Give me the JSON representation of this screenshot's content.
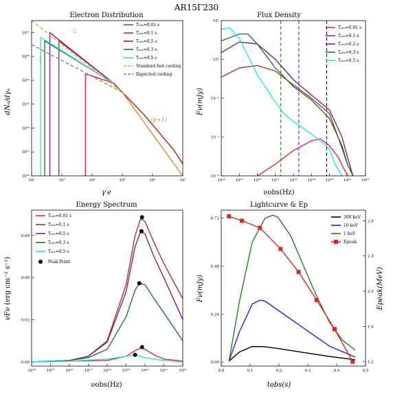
{
  "title": "AR15Γ230",
  "panels": {
    "electron": {
      "title": "Electron Distribution",
      "xlabel": "γ′e",
      "ylabel": "dNₑ/dγₑ",
      "legend": [
        "Tₒ₆ₛ=0.01 s",
        "Tₒ₆ₛ=0.1 s",
        "Tₒ₆ₛ=0.2 s",
        "Tₒ₆ₛ=0.3 s",
        "Tₒ₆ₛ=0.5 s",
        "Standard fast cooling",
        "Expected cooling"
      ],
      "annotations": [
        "-2",
        "-1",
        "−(p+1)"
      ]
    },
    "flux": {
      "title": "Flux Density",
      "xlabel": "νobs(Hz)",
      "ylabel": "Fν(mJy)",
      "legend": [
        "Tₒ₆ₛ=0.01 s",
        "Tₒ₆ₛ=0.1 s",
        "Tₒ₆ₛ=0.2 s",
        "Tₒ₆ₛ=0.3 s",
        "Tₒ₆ₛ=0.5 s"
      ]
    },
    "spectrum": {
      "title": "Energy Spectrum",
      "xlabel": "νobs(Hz)",
      "ylabel": "νFν (erg cm⁻² s⁻¹)",
      "legend": [
        "Tₒ₆ₛ=0.01 s",
        "Tₒ₆ₛ=0.1 s",
        "Tₒ₆ₛ=0.2 s",
        "Tₒ₆ₛ=0.3 s",
        "Tₒ₆ₛ=0.5 s",
        "Peak Point"
      ]
    },
    "lightcurve": {
      "title": "Lightcurve & Ep",
      "xlabel": "tobs(s)",
      "ylabel": "Fν(mJy)",
      "ylabel_right": "Epeak(MeV)",
      "legend": [
        "300 keV",
        "10 keV",
        "1 keV",
        "Epeak"
      ]
    }
  },
  "colors": {
    "t001": "#e8262b",
    "t01": "#a83232",
    "t02": "#7d1e8c",
    "t03": "#237a23",
    "t05": "#1fe6e6",
    "standard": "#f5a623",
    "expected": "#808080",
    "high": "#c8902a",
    "kev300": "#000000",
    "kev10": "#2020dd",
    "kev1": "#208020",
    "epeak": "#e82020"
  },
  "chart_data": [
    {
      "type": "line",
      "title": "Electron Distribution",
      "xlabel": "γ′e",
      "ylabel": "dNₑ/dγₑ",
      "xscale": "log",
      "yscale": "log",
      "xlim": [
        100,
        10000000
      ],
      "ylim": [
        1e+35,
        1e+48
      ],
      "xticks": [
        "10²",
        "10³",
        "10⁴",
        "10⁵",
        "10⁶",
        "10⁷"
      ],
      "yticks": [
        "10³⁵",
        "10³⁷",
        "10³⁹",
        "10⁴¹",
        "10⁴³",
        "10⁴⁵",
        "10⁴⁷"
      ],
      "series": [
        {
          "name": "Tₒ₆ₛ=0.01 s",
          "color": "t001",
          "x": [
            6000,
            6000,
            8000,
            50000,
            500000,
            5000000,
            10000000
          ],
          "y": [
            1e+35,
            3e+43,
            2.8e+43,
            6e+42,
            1.5e+40,
            1.5e+37,
            1e+36
          ]
        },
        {
          "name": "Tₒ₆ₛ=0.1 s",
          "color": "t01",
          "x": [
            800,
            800,
            50000,
            500000,
            5000000,
            10000000
          ],
          "y": [
            1e+35,
            2e+46,
            6e+42,
            1.5e+40,
            1.5e+37,
            1e+36
          ]
        },
        {
          "name": "Tₒ₆ₛ=0.2 s",
          "color": "t02",
          "x": [
            400,
            400,
            50000
          ],
          "y": [
            1e+35,
            1e+47,
            6e+42
          ]
        },
        {
          "name": "Tₒ₆ₛ=0.3 s",
          "color": "t03",
          "x": [
            270,
            270,
            50000
          ],
          "y": [
            1e+35,
            2e+46,
            6e+42
          ]
        },
        {
          "name": "Tₒ₆ₛ=0.5 s",
          "color": "t05",
          "x": [
            200,
            200,
            50000
          ],
          "y": [
            1e+35,
            4e+46,
            6e+42
          ]
        },
        {
          "name": "Standard fast cooling",
          "color": "standard",
          "x": [
            100,
            100000
          ],
          "y": [
            1e+48,
            1e+42
          ]
        },
        {
          "name": "Expected cooling",
          "color": "expected",
          "x": [
            100,
            100000
          ],
          "y": [
            1e+46,
            1e+42
          ]
        },
        {
          "name": "",
          "color": "high",
          "x": [
            100000,
            10000000
          ],
          "y": [
            1e+42,
            1e+35
          ]
        }
      ]
    },
    {
      "type": "line",
      "title": "Flux Density",
      "xlabel": "νobs(Hz)",
      "ylabel": "Fν(mJy)",
      "xscale": "log",
      "yscale": "log",
      "xlim": [
        100000000000000.0,
        1e+22
      ],
      "ylim": [
        0.001,
        10
      ],
      "xticks": [
        "10¹⁴",
        "10¹⁵",
        "10¹⁶",
        "10¹⁷",
        "10¹⁸",
        "10¹⁹",
        "10²⁰",
        "10²¹",
        "10²²"
      ],
      "yticks": [
        "10⁻³",
        "10⁻²",
        "10⁻¹",
        "10⁰",
        "10¹"
      ],
      "vlines": [
        {
          "x": 2e+17,
          "color": "t03"
        },
        {
          "x": 2e+18,
          "color": "kev10"
        },
        {
          "x": 7e+19,
          "color": "kev300"
        }
      ],
      "series": [
        {
          "name": "Tₒ₆ₛ=0.01 s",
          "color": "t001",
          "x": [
            1e+16,
            1e+17,
            1e+18,
            1e+19,
            3e+19,
            1e+20,
            3e+20,
            1e+21
          ],
          "y": [
            0.001,
            0.002,
            0.0045,
            0.008,
            0.009,
            0.006,
            0.003,
            0.001
          ]
        },
        {
          "name": "Tₒ₆ₛ=0.1 s",
          "color": "t01",
          "x": [
            100000000000000.0,
            1000000000000000.0,
            1e+16,
            1e+17,
            1e+18,
            1e+19,
            1e+20,
            3e+20,
            1e+21,
            2e+21
          ],
          "y": [
            0.35,
            0.6,
            0.7,
            0.5,
            0.22,
            0.1,
            0.04,
            0.01,
            0.002,
            0.001
          ]
        },
        {
          "name": "Tₒ₆ₛ=0.2 s",
          "color": "t02",
          "x": [
            100000000000000.0,
            1000000000000000.0,
            1e+16,
            1e+17,
            1e+18,
            1e+19,
            1e+20,
            5e+20,
            1e+21,
            2e+21
          ],
          "y": [
            1.5,
            2.8,
            2.5,
            1.0,
            0.3,
            0.12,
            0.05,
            0.01,
            0.003,
            0.001
          ]
        },
        {
          "name": "Tₒ₆ₛ=0.3 s",
          "color": "t03",
          "x": [
            100000000000000.0,
            1000000000000000.0,
            3000000000000000.0,
            1e+16,
            1e+17,
            1e+18,
            1e+19,
            1e+20,
            5e+20,
            1e+21,
            2e+21
          ],
          "y": [
            3,
            4.5,
            4.5,
            2.5,
            0.6,
            0.2,
            0.09,
            0.03,
            0.006,
            0.002,
            0.001
          ]
        },
        {
          "name": "Tₒ₆ₛ=0.5 s",
          "color": "t05",
          "x": [
            100000000000000.0,
            300000000000000.0,
            1000000000000000.0,
            1e+16,
            1e+17,
            3e+17,
            1e+18,
            1e+19,
            1e+20,
            2e+20,
            5e+20
          ],
          "y": [
            6,
            6.5,
            3.5,
            0.4,
            0.08,
            0.04,
            0.025,
            0.012,
            0.005,
            0.002,
            0.001
          ]
        }
      ]
    },
    {
      "type": "line",
      "title": "Energy Spectrum",
      "xlabel": "νobs(Hz)",
      "ylabel": "νFν (erg cm⁻² s⁻¹)",
      "xscale": "log",
      "xlim": [
        100000000000000.0,
        1e+22
      ],
      "ylim": [
        -0.003,
        0.108
      ],
      "xticks": [
        "10¹⁴",
        "10¹⁵",
        "10¹⁶",
        "10¹⁷",
        "10¹⁸",
        "10¹⁹",
        "10²⁰",
        "10²¹",
        "10²²"
      ],
      "yticks": [
        "0.00",
        "0.03",
        "0.06",
        "0.09"
      ],
      "series": [
        {
          "name": "Tₒ₆ₛ=0.01 s",
          "color": "t001",
          "x": [
            100000000000000.0,
            1e+18,
            1e+19,
            3e+19,
            6e+19,
            1e+20,
            3e+20,
            1e+21,
            1e+22
          ],
          "y": [
            0,
            0.001,
            0.004,
            0.008,
            0.01,
            0.009,
            0.005,
            0.002,
            0.0005
          ]
        },
        {
          "name": "Tₒ₆ₛ=0.1 s",
          "color": "t01",
          "x": [
            100000000000000.0,
            1e+16,
            1e+17,
            1e+18,
            1e+19,
            3e+19,
            6e+19,
            1e+20,
            3e+20,
            1e+21,
            1e+22
          ],
          "y": [
            0,
            0.001,
            0.004,
            0.015,
            0.055,
            0.09,
            0.102,
            0.1,
            0.085,
            0.07,
            0.045
          ]
        },
        {
          "name": "Tₒ₆ₛ=0.2 s",
          "color": "t02",
          "x": [
            100000000000000.0,
            1e+16,
            1e+17,
            1e+18,
            1e+19,
            3e+19,
            6e+19,
            1e+20,
            3e+20,
            1e+21,
            1e+22
          ],
          "y": [
            0,
            0.001,
            0.004,
            0.014,
            0.05,
            0.082,
            0.093,
            0.091,
            0.075,
            0.06,
            0.03
          ]
        },
        {
          "name": "Tₒ₆ₛ=0.3 s",
          "color": "t03",
          "x": [
            100000000000000.0,
            1e+16,
            1e+17,
            1e+18,
            1e+19,
            3e+19,
            5e+19,
            1e+20,
            3e+20,
            1e+21,
            1e+22
          ],
          "y": [
            0,
            0.001,
            0.003,
            0.009,
            0.032,
            0.051,
            0.056,
            0.055,
            0.045,
            0.035,
            0.015
          ]
        },
        {
          "name": "Tₒ₆ₛ=0.5 s",
          "color": "t05",
          "x": [
            100000000000000.0,
            1e+16,
            1e+18,
            1e+19,
            3e+19,
            1e+20,
            1e+21,
            1e+22
          ],
          "y": [
            0,
            0.0005,
            0.002,
            0.004,
            0.005,
            0.003,
            0.001,
            0
          ]
        }
      ],
      "peak_points": [
        {
          "x": 7e+19,
          "y": 0.0105
        },
        {
          "x": 7e+19,
          "y": 0.103
        },
        {
          "x": 6.5e+19,
          "y": 0.093
        },
        {
          "x": 5e+19,
          "y": 0.056
        },
        {
          "x": 3e+19,
          "y": 0.005
        }
      ]
    },
    {
      "type": "line",
      "title": "Lightcurve & Ep",
      "xlabel": "tobs(s)",
      "ylabel": "Fν(mJy)",
      "ylabel_right": "Epeak(MeV)",
      "xlim": [
        -0.02,
        0.54
      ],
      "ylim": [
        -0.02,
        0.76
      ],
      "ylim_right": [
        1.15,
        2.92
      ],
      "xticks": [
        "0.0",
        "0.1",
        "0.2",
        "0.3",
        "0.4",
        "0.5"
      ],
      "yticks": [
        "0.00",
        "0.24",
        "0.48",
        "0.72"
      ],
      "yticks_right": [
        "1.2",
        "1.6",
        "2.0",
        "2.4",
        "2.8"
      ],
      "series": [
        {
          "name": "300 keV",
          "color": "kev300",
          "x": [
            0.01,
            0.05,
            0.1,
            0.15,
            0.2,
            0.3,
            0.4,
            0.5
          ],
          "y": [
            0.005,
            0.05,
            0.078,
            0.077,
            0.068,
            0.048,
            0.028,
            0.012
          ]
        },
        {
          "name": "10 keV",
          "color": "kev10",
          "x": [
            0.01,
            0.05,
            0.1,
            0.13,
            0.15,
            0.2,
            0.3,
            0.4,
            0.5
          ],
          "y": [
            0.005,
            0.15,
            0.29,
            0.31,
            0.305,
            0.26,
            0.17,
            0.08,
            0.025
          ]
        },
        {
          "name": "1 keV",
          "color": "kev1",
          "x": [
            0.01,
            0.05,
            0.1,
            0.15,
            0.18,
            0.2,
            0.25,
            0.3,
            0.35,
            0.4,
            0.45,
            0.5
          ],
          "y": [
            0.005,
            0.3,
            0.6,
            0.72,
            0.735,
            0.725,
            0.63,
            0.48,
            0.33,
            0.2,
            0.11,
            0.06
          ]
        },
        {
          "name": "Epeak",
          "color": "epeak",
          "axis": "right",
          "x": [
            0.01,
            0.06,
            0.13,
            0.21,
            0.28,
            0.35,
            0.42,
            0.49
          ],
          "y": [
            2.85,
            2.8,
            2.72,
            2.48,
            2.22,
            1.9,
            1.57,
            1.2
          ]
        }
      ]
    }
  ]
}
